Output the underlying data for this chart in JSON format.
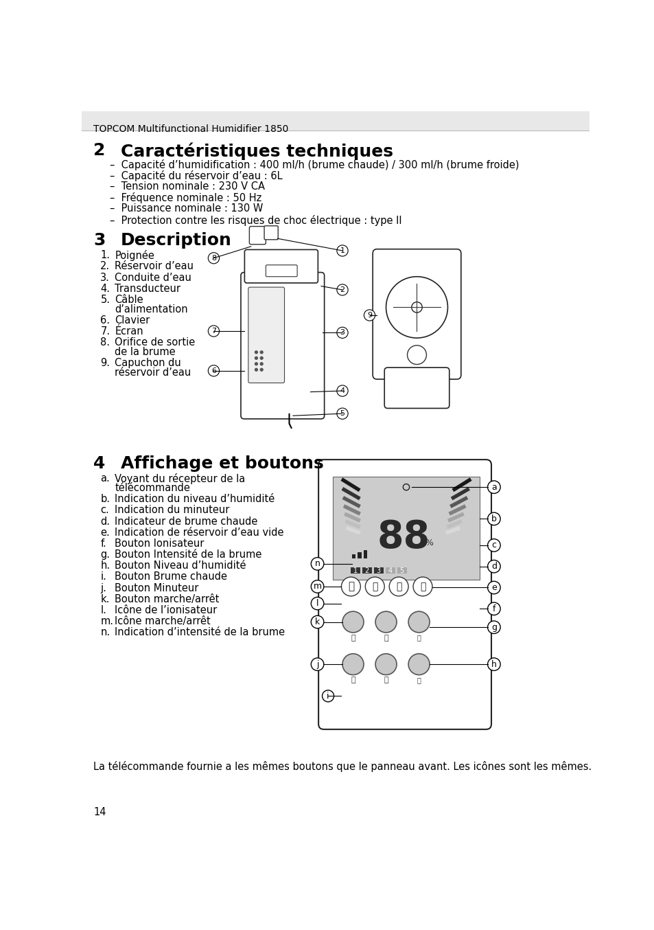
{
  "header_text": "TOPCOM Multifunctional Humidifier 1850",
  "header_bg": "#e8e8e8",
  "bg_color": "#ffffff",
  "section2_number": "2",
  "section2_title": "Caractéristiques techniques",
  "section2_bullets": [
    "Capacité d’humidification : 400 ml/h (brume chaude) / 300 ml/h (brume froide)",
    "Capacité du réservoir d’eau : 6L",
    "Tension nominale : 230 V CA",
    "Fréquence nominale : 50 Hz",
    "Puissance nominale : 130 W",
    "Protection contre les risques de choc électrique : type II"
  ],
  "section3_number": "3",
  "section3_title": "Description",
  "section3_items": [
    [
      "1.",
      "Poignée"
    ],
    [
      "2.",
      "Réservoir d’eau"
    ],
    [
      "3.",
      "Conduite d’eau"
    ],
    [
      "4.",
      "Transducteur"
    ],
    [
      "5.",
      "Câble\nd’alimentation"
    ],
    [
      "6.",
      "Clavier"
    ],
    [
      "7.",
      "Écran"
    ],
    [
      "8.",
      "Orifice de sortie\nde la brume"
    ],
    [
      "9.",
      "Capuchon du\nréservoir d’eau"
    ]
  ],
  "section4_number": "4",
  "section4_title": "Affichage et boutons",
  "section4_items": [
    [
      "a.",
      "Voyant du récepteur de la\ntélécommande"
    ],
    [
      "b.",
      "Indication du niveau d’humidité"
    ],
    [
      "c.",
      "Indication du minuteur"
    ],
    [
      "d.",
      "Indicateur de brume chaude"
    ],
    [
      "e.",
      "Indication de réservoir d’eau vide"
    ],
    [
      "f.",
      "Bouton Ionisateur"
    ],
    [
      "g.",
      "Bouton Intensité de la brume"
    ],
    [
      "h.",
      "Bouton Niveau d’humidité"
    ],
    [
      "i.",
      "Bouton Brume chaude"
    ],
    [
      "j.",
      "Bouton Minuteur"
    ],
    [
      "k.",
      "Bouton marche/arrêt"
    ],
    [
      "l.",
      "Icône de l’ionisateur"
    ],
    [
      "m.",
      "Icône marche/arrêt"
    ],
    [
      "n.",
      "Indication d’intensité de la brume"
    ]
  ],
  "footer_text": "La télécommande fournie a les mêmes boutons que le panneau avant. Les icônes sont les mêmes.",
  "page_number": "14"
}
